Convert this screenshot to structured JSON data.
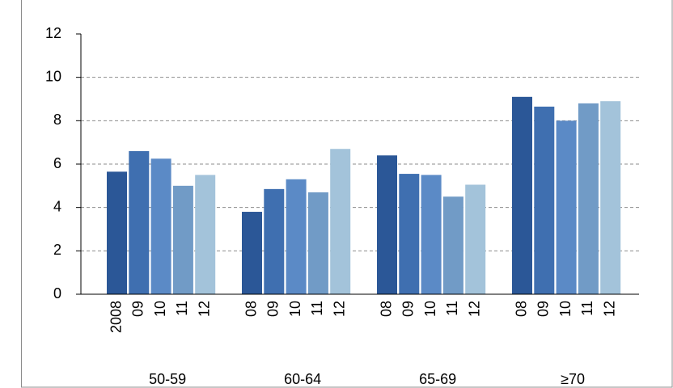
{
  "chart_data": {
    "type": "bar",
    "categories": [
      "50-59",
      "60-64",
      "65-69",
      "≥70"
    ],
    "bar_labels": [
      [
        "2008",
        "09",
        "10",
        "11",
        "12"
      ],
      [
        "08",
        "09",
        "10",
        "11",
        "12"
      ],
      [
        "08",
        "09",
        "10",
        "11",
        "12"
      ],
      [
        "08",
        "09",
        "10",
        "11",
        "12"
      ]
    ],
    "series": [
      {
        "color": "#2b5797",
        "values": [
          5.65,
          3.8,
          6.4,
          9.1
        ]
      },
      {
        "color": "#3f6fb0",
        "values": [
          6.6,
          4.85,
          5.55,
          8.65
        ]
      },
      {
        "color": "#5b8ac6",
        "values": [
          6.25,
          5.3,
          5.5,
          8.0
        ]
      },
      {
        "color": "#719bc6",
        "values": [
          5.0,
          4.7,
          4.5,
          8.8
        ]
      },
      {
        "color": "#a3c3da",
        "values": [
          5.5,
          6.7,
          5.05,
          8.9
        ]
      }
    ],
    "ylim": [
      0,
      12
    ],
    "yticks": [
      0,
      2,
      4,
      6,
      8,
      10,
      12
    ],
    "grid": true
  }
}
